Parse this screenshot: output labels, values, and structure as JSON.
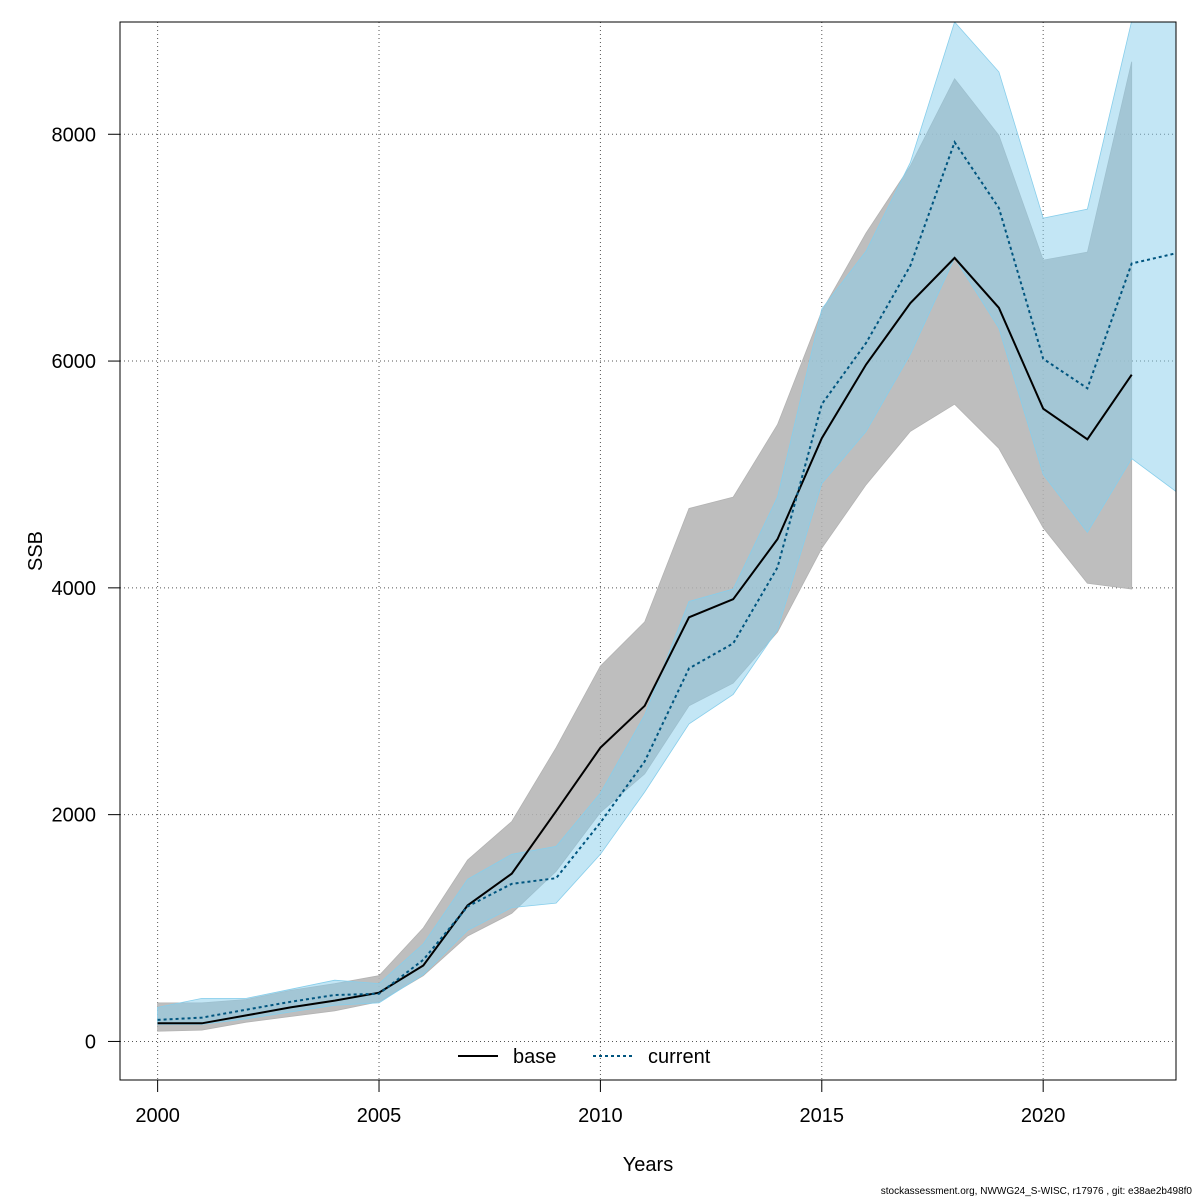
{
  "chart_data": {
    "type": "line",
    "xlabel": "Years",
    "ylabel": "SSB",
    "xlim": [
      1999.15,
      2023
    ],
    "ylim": [
      -340,
      8990
    ],
    "x_ticks": [
      2000,
      2005,
      2010,
      2015,
      2020
    ],
    "y_ticks": [
      0,
      2000,
      4000,
      6000,
      8000
    ],
    "grid": true,
    "legend_position": "bottom-center",
    "series": [
      {
        "name": "base",
        "color": "#000000",
        "line_style": "solid",
        "band_color": "#b3b3b3",
        "x": [
          2000,
          2001,
          2002,
          2003,
          2004,
          2005,
          2006,
          2007,
          2008,
          2009,
          2010,
          2011,
          2012,
          2013,
          2014,
          2015,
          2016,
          2017,
          2018,
          2019,
          2020,
          2021,
          2022
        ],
        "y": [
          160,
          160,
          230,
          300,
          360,
          430,
          670,
          1200,
          1480,
          2030,
          2590,
          2960,
          3740,
          3900,
          4430,
          5320,
          5970,
          6510,
          6910,
          6470,
          5580,
          5310,
          5880
        ],
        "lower": [
          90,
          100,
          170,
          220,
          270,
          350,
          580,
          930,
          1130,
          1500,
          2020,
          2360,
          2960,
          3160,
          3610,
          4350,
          4910,
          5380,
          5620,
          5230,
          4530,
          4040,
          3990
        ],
        "upper": [
          340,
          340,
          370,
          450,
          510,
          580,
          1000,
          1600,
          1940,
          2590,
          3310,
          3700,
          4700,
          4800,
          5440,
          6440,
          7130,
          7720,
          8490,
          7990,
          6890,
          6960,
          8640
        ]
      },
      {
        "name": "current",
        "color": "#00557f",
        "line_style": "dotted",
        "band_color": "#87ceeb",
        "x": [
          2000,
          2001,
          2002,
          2003,
          2004,
          2005,
          2006,
          2007,
          2008,
          2009,
          2010,
          2011,
          2012,
          2013,
          2014,
          2015,
          2016,
          2017,
          2018,
          2019,
          2020,
          2021,
          2022,
          2023
        ],
        "y": [
          190,
          210,
          280,
          350,
          410,
          420,
          720,
          1190,
          1390,
          1440,
          1930,
          2470,
          3290,
          3510,
          4180,
          5620,
          6160,
          6840,
          7930,
          7350,
          6020,
          5760,
          6860,
          6950
        ],
        "lower": [
          150,
          150,
          200,
          260,
          320,
          340,
          590,
          980,
          1180,
          1220,
          1650,
          2200,
          2800,
          3060,
          3630,
          4920,
          5380,
          6060,
          6910,
          6290,
          5000,
          4490,
          5140,
          4850
        ],
        "upper": [
          300,
          380,
          380,
          460,
          540,
          510,
          860,
          1430,
          1650,
          1720,
          2190,
          2880,
          3880,
          3990,
          4800,
          6460,
          6970,
          7750,
          8990,
          8550,
          7260,
          7340,
          9000,
          9000
        ]
      }
    ]
  },
  "footer": "stockassessment.org, NWWG24_S-WISC, r17976 , git: e38ae2b498f0"
}
